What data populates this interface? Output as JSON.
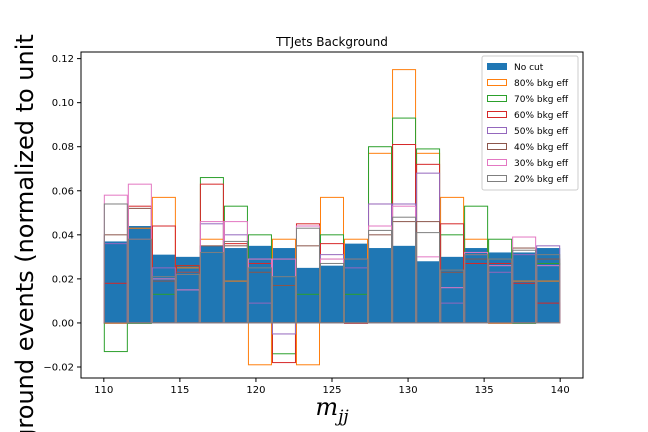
{
  "chart_data": {
    "type": "histogram",
    "title": "TTJets Background",
    "xlabel": "m",
    "xlabel_sub": "jj",
    "ylabel": "ground events (normalized to unit",
    "xlim": [
      108.5,
      141.5
    ],
    "ylim": [
      -0.025,
      0.123
    ],
    "xticks": [
      110,
      115,
      120,
      125,
      130,
      135,
      140
    ],
    "yticks": [
      -0.02,
      0.0,
      0.02,
      0.04,
      0.06,
      0.08,
      0.1,
      0.12
    ],
    "ytick_labels": [
      "−0.02",
      "0.00",
      "0.02",
      "0.04",
      "0.06",
      "0.08",
      "0.10",
      "0.12"
    ],
    "bin_edges": [
      110.0,
      111.579,
      113.158,
      114.737,
      116.316,
      117.895,
      119.474,
      121.053,
      122.632,
      124.211,
      125.789,
      127.368,
      128.947,
      130.526,
      132.105,
      133.684,
      135.263,
      136.842,
      138.421,
      140.0
    ],
    "legend_position": "top-right",
    "series": [
      {
        "name": "No cut",
        "style": "filled",
        "color": "#1f77b4",
        "values": [
          0.037,
          0.044,
          0.031,
          0.03,
          0.035,
          0.034,
          0.035,
          0.034,
          0.025,
          0.026,
          0.036,
          0.034,
          0.035,
          0.028,
          0.03,
          0.034,
          0.032,
          0.032,
          0.034
        ]
      },
      {
        "name": "80% bkg eff",
        "style": "step",
        "color": "#ff7f0e",
        "values": [
          0.0,
          0.043,
          0.057,
          0.025,
          0.038,
          0.019,
          -0.019,
          0.038,
          -0.019,
          0.057,
          0.038,
          0.077,
          0.115,
          0.077,
          0.057,
          0.038,
          0.0,
          0.019,
          0.019
        ]
      },
      {
        "name": "70% bkg eff",
        "style": "step",
        "color": "#2ca02c",
        "values": [
          -0.013,
          0.0,
          0.013,
          0.026,
          0.066,
          0.053,
          0.04,
          -0.014,
          0.013,
          0.04,
          0.013,
          0.08,
          0.093,
          0.079,
          0.04,
          0.053,
          0.038,
          0.0,
          0.027
        ]
      },
      {
        "name": "60% bkg eff",
        "style": "step",
        "color": "#d62728",
        "values": [
          0.018,
          0.053,
          0.044,
          0.026,
          0.063,
          0.036,
          0.027,
          -0.018,
          0.045,
          0.036,
          0.0,
          0.054,
          0.081,
          0.072,
          0.045,
          0.027,
          0.027,
          0.018,
          0.009
        ]
      },
      {
        "name": "50% bkg eff",
        "style": "step",
        "color": "#9467bd",
        "values": [
          0.036,
          0.038,
          0.025,
          0.023,
          0.045,
          0.04,
          0.009,
          -0.005,
          0.044,
          0.031,
          0.025,
          0.054,
          0.054,
          0.068,
          0.009,
          0.031,
          0.023,
          0.031,
          0.035
        ]
      },
      {
        "name": "40% bkg eff",
        "style": "step",
        "color": "#8c564b",
        "values": [
          0.04,
          0.052,
          0.019,
          0.023,
          0.035,
          0.035,
          0.023,
          0.017,
          0.035,
          0.029,
          0.029,
          0.04,
          0.046,
          0.046,
          0.023,
          0.029,
          0.029,
          0.034,
          0.029
        ]
      },
      {
        "name": "30% bkg eff",
        "style": "step",
        "color": "#e377c2",
        "values": [
          0.058,
          0.063,
          0.02,
          0.015,
          0.046,
          0.046,
          0.029,
          0.029,
          0.044,
          0.029,
          0.029,
          0.044,
          0.053,
          0.03,
          0.016,
          0.032,
          0.026,
          0.039,
          0.026
        ]
      },
      {
        "name": "20% bkg eff",
        "style": "step",
        "color": "#7f7f7f",
        "values": [
          0.054,
          0.038,
          0.021,
          0.022,
          0.032,
          0.037,
          0.025,
          0.021,
          0.043,
          0.027,
          0.029,
          0.042,
          0.048,
          0.041,
          0.024,
          0.031,
          0.029,
          0.033,
          0.031
        ]
      }
    ]
  }
}
